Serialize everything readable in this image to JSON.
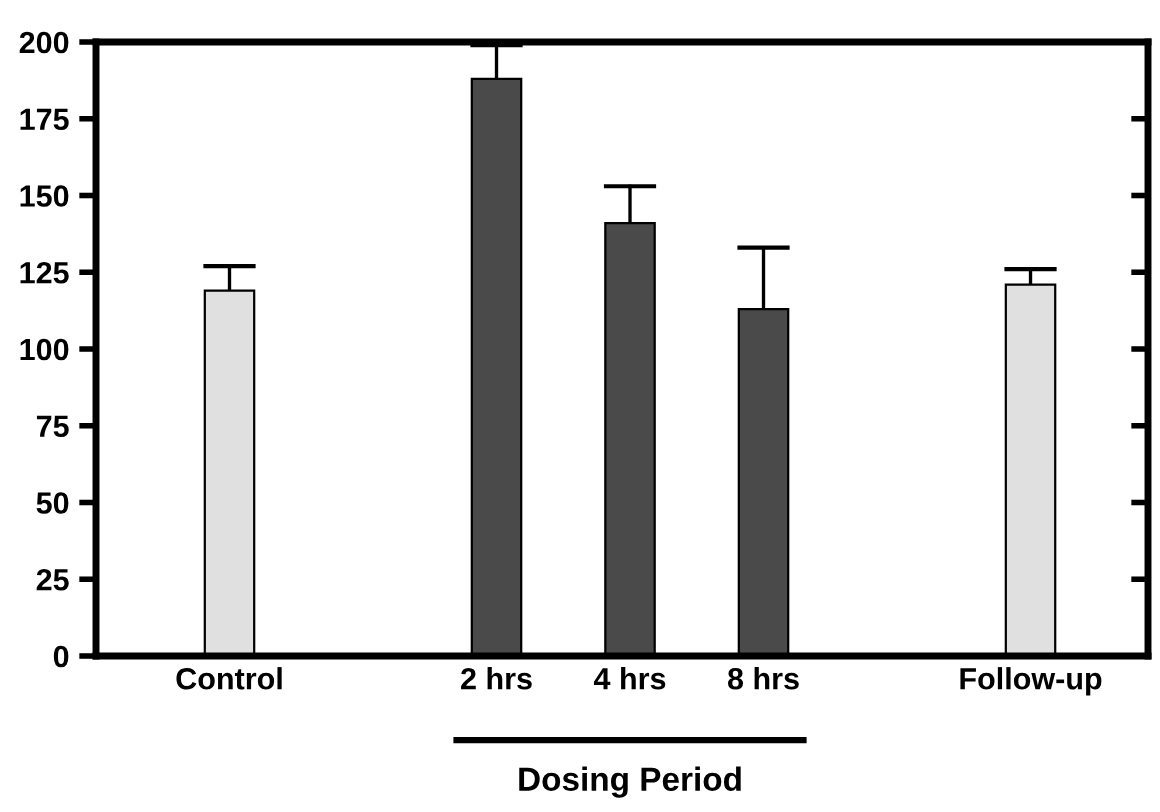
{
  "chart_data": {
    "type": "bar",
    "categories": [
      "Control",
      null,
      "2 hrs",
      "4 hrs",
      "8 hrs",
      null,
      "Follow-up"
    ],
    "values": [
      119,
      null,
      188,
      141,
      113,
      null,
      121
    ],
    "colors": [
      "#e0e0e0",
      null,
      "#4a4a4a",
      "#4a4a4a",
      "#4a4a4a",
      null,
      "#e0e0e0"
    ],
    "errors": [
      [
        119,
        127
      ],
      null,
      [
        188,
        199
      ],
      [
        141,
        153
      ],
      [
        113,
        133
      ],
      null,
      [
        121,
        126
      ]
    ],
    "ylim": [
      0,
      200
    ],
    "yticks": [
      0,
      25,
      50,
      75,
      100,
      125,
      150,
      175,
      200
    ],
    "annotations": [
      "Dosing Period"
    ],
    "grid": false,
    "legend": false
  }
}
